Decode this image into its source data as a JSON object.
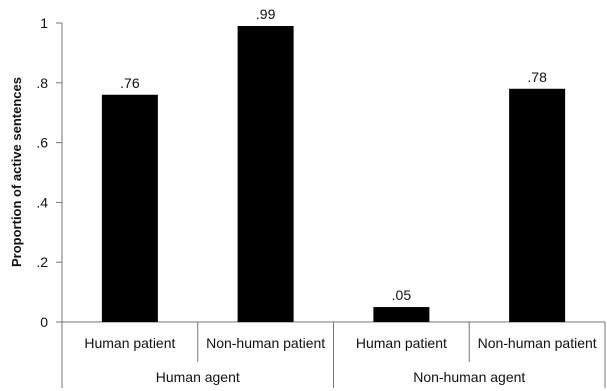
{
  "chart_data": {
    "type": "bar",
    "ylabel": "Proportion of active sentences",
    "xlabel": "",
    "title": "",
    "ylim": [
      0,
      1
    ],
    "yticks": [
      {
        "value": 0,
        "label": "0"
      },
      {
        "value": 0.2,
        "label": ".2"
      },
      {
        "value": 0.4,
        "label": ".4"
      },
      {
        "value": 0.6,
        "label": ".6"
      },
      {
        "value": 0.8,
        "label": ".8"
      },
      {
        "value": 1,
        "label": "1"
      }
    ],
    "grid": false,
    "legend": "none",
    "bar_color": "#000000",
    "categories": [
      "Human patient",
      "Non-human patient",
      "Human patient",
      "Non-human patient"
    ],
    "groups": [
      "Human agent",
      "Non-human agent"
    ],
    "category_group": [
      0,
      0,
      1,
      1
    ],
    "values": [
      0.76,
      0.99,
      0.05,
      0.78
    ],
    "data_labels": [
      ".76",
      ".99",
      ".05",
      ".78"
    ]
  }
}
